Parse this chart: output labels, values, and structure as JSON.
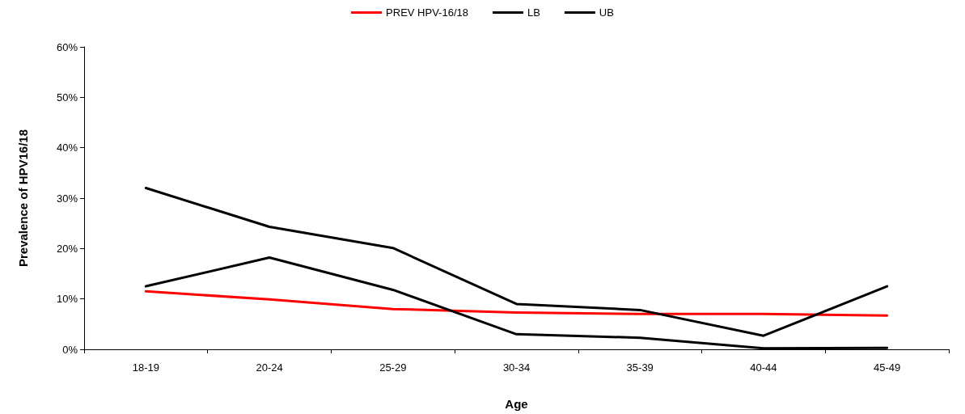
{
  "chart_data": {
    "type": "line",
    "xlabel": "Age",
    "ylabel": "Prevalence of HPV16/18",
    "categories": [
      "18-19",
      "20-24",
      "25-29",
      "30-34",
      "35-39",
      "40-44",
      "45-49"
    ],
    "series": [
      {
        "name": "PREV HPV-16/18",
        "color": "#ff0000",
        "values": [
          11.5,
          9.9,
          8.0,
          7.3,
          7.0,
          7.0,
          6.7
        ]
      },
      {
        "name": "LB",
        "color": "#000000",
        "values": [
          12.5,
          18.2,
          11.8,
          3.0,
          2.3,
          0.2,
          0.3
        ]
      },
      {
        "name": "UB",
        "color": "#000000",
        "values": [
          32.0,
          24.3,
          20.1,
          9.0,
          7.8,
          2.7,
          12.5
        ]
      }
    ],
    "ylim": [
      0,
      60
    ],
    "yticks": [
      {
        "value": 0,
        "label": "0%"
      },
      {
        "value": 10,
        "label": "10%"
      },
      {
        "value": 20,
        "label": "20%"
      },
      {
        "value": 30,
        "label": "30%"
      },
      {
        "value": 40,
        "label": "40%"
      },
      {
        "value": 50,
        "label": "50%"
      },
      {
        "value": 60,
        "label": "60%"
      }
    ],
    "grid": false,
    "legend": "top",
    "marker": "none",
    "line_style": "solid"
  }
}
